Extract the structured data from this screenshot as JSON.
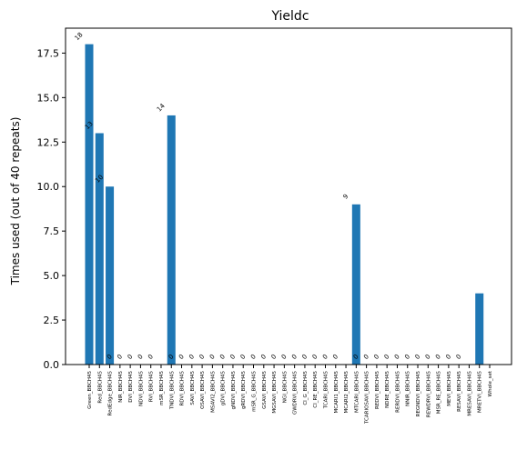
{
  "chart_data": {
    "type": "bar",
    "title": "Yieldc",
    "xlabel": "",
    "ylabel": "Times used (out of 40 repeats)",
    "ylim": [
      0,
      18.9
    ],
    "yticks": [
      "0.0",
      "2.5",
      "5.0",
      "7.5",
      "10.0",
      "12.5",
      "15.0",
      "17.5"
    ],
    "ytick_values": [
      0,
      2.5,
      5,
      7.5,
      10,
      12.5,
      15,
      17.5
    ],
    "color": "#1f77b4",
    "categories": [
      "Green_BBCH45",
      "Red_BBCH45",
      "RedEdge_BBCH45",
      "NIR_BBCH45",
      "DVI_BBCH45",
      "NDVI_BBCH45",
      "RVI_BBCH45",
      "mSR_BBCH45",
      "TNDVI_BBCH45",
      "RDVI_BBCH45",
      "SAVI_BBCH45",
      "OSAVI_BBCH45",
      "MSAVI2_BBCH45",
      "gDVI_BBCH45",
      "gNDVI_BBCH45",
      "gRDVI_BBCH45",
      "mSR_G_BBCH45",
      "GSAVI_BBCH45",
      "MGSAVI_BBCH45",
      "NGI_BBCH45",
      "GWDRVI_BBCH45",
      "CI_G_BBCH45",
      "CI_RE_BBCH45",
      "TCARI_BBCH45",
      "MCARI1_BBCH45",
      "MCARI2_BBCH45",
      "MTCARI_BBCH45",
      "TCARIOSAVI_BBCH45",
      "REDVI_BBCH45",
      "NDRE_BBCH45",
      "RERDVI_BBCH45",
      "NNIR_BBCH45",
      "REGNDVI_BBCH45",
      "REWDRVI_BBCH45",
      "MSR_RE_BBCH45",
      "MEVI_BBCH45",
      "RESAVI_BBCH45",
      "MRESAVI_BBCH45",
      "MRETVI_BBCH45",
      "Whole_set"
    ],
    "values": [
      18,
      13,
      10,
      0,
      0,
      0,
      0,
      0,
      14,
      0,
      0,
      0,
      0,
      0,
      0,
      0,
      0,
      0,
      0,
      0,
      0,
      0,
      0,
      0,
      0,
      0,
      9,
      0,
      0,
      0,
      0,
      0,
      0,
      0,
      0,
      0,
      0,
      0,
      4,
      0
    ],
    "data_labels": [
      "18",
      "13",
      "10",
      "0",
      "0",
      "0",
      "0",
      "0",
      "14",
      "0",
      "0",
      "0",
      "0",
      "0",
      "0",
      "0",
      "0",
      "0",
      "0",
      "0",
      "0",
      "0",
      "0",
      "0",
      "0",
      "0",
      "9",
      "0",
      "0",
      "0",
      "0",
      "0",
      "0",
      "0",
      "0",
      "0",
      "0",
      "0",
      "",
      ""
    ]
  }
}
